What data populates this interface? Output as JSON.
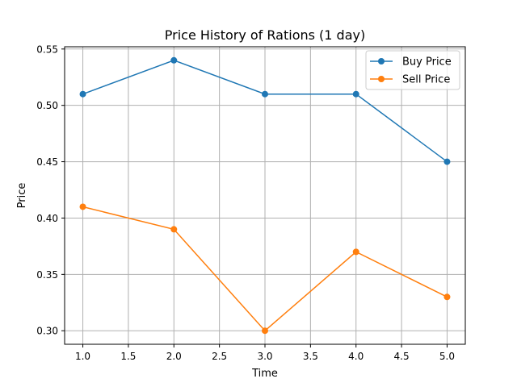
{
  "chart_data": {
    "type": "line",
    "title": "Price History of Rations (1 day)",
    "xlabel": "Time",
    "ylabel": "Price",
    "x": [
      1.0,
      2.0,
      3.0,
      4.0,
      5.0
    ],
    "series": [
      {
        "name": "Buy Price",
        "color": "#1f77b4",
        "values": [
          0.51,
          0.54,
          0.51,
          0.51,
          0.45
        ]
      },
      {
        "name": "Sell Price",
        "color": "#ff7f0e",
        "values": [
          0.41,
          0.39,
          0.3,
          0.37,
          0.33
        ]
      }
    ],
    "xlim": [
      0.8,
      5.2
    ],
    "ylim": [
      0.288,
      0.552
    ],
    "xticks": [
      "1.0",
      "1.5",
      "2.0",
      "2.5",
      "3.0",
      "3.5",
      "4.0",
      "4.5",
      "5.0"
    ],
    "yticks": [
      "0.30",
      "0.35",
      "0.40",
      "0.45",
      "0.50",
      "0.55"
    ],
    "grid": true,
    "legend": "top-right"
  }
}
